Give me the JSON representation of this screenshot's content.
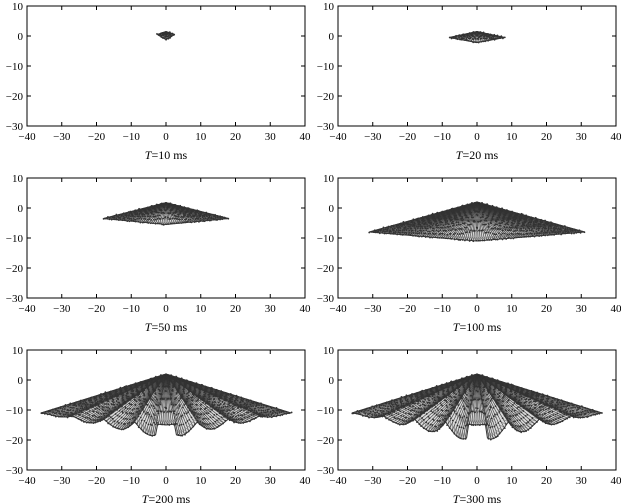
{
  "chart_data": [
    {
      "type": "scatter",
      "caption_var": "T",
      "caption_rest": "=10 ms",
      "xlim": [
        -40,
        40
      ],
      "ylim": [
        -30,
        10
      ],
      "xticks": [
        -40,
        -30,
        -20,
        -10,
        0,
        10,
        20,
        30,
        40
      ],
      "yticks": [
        10,
        0,
        -10,
        -20,
        -30
      ],
      "half_width": 2.5,
      "apex": 1.5,
      "outer_tip": 0.5,
      "dip": -1.0,
      "inner_dip": -1.2,
      "lobes": 2,
      "grid": false,
      "marker": "dot",
      "color": "#333333"
    },
    {
      "type": "scatter",
      "caption_var": "T",
      "caption_rest": "=20 ms",
      "xlim": [
        -40,
        40
      ],
      "ylim": [
        -30,
        10
      ],
      "xticks": [
        -40,
        -30,
        -20,
        -10,
        0,
        10,
        20,
        30,
        40
      ],
      "yticks": [
        10,
        0,
        -10,
        -20,
        -30
      ],
      "half_width": 8,
      "apex": 1.5,
      "outer_tip": -0.5,
      "dip": -1.8,
      "inner_dip": -2.2,
      "lobes": 3,
      "grid": false,
      "marker": "dot",
      "color": "#333333"
    },
    {
      "type": "scatter",
      "caption_var": "T",
      "caption_rest": "=50 ms",
      "xlim": [
        -40,
        40
      ],
      "ylim": [
        -30,
        10
      ],
      "xticks": [
        -40,
        -30,
        -20,
        -10,
        0,
        10,
        20,
        30,
        40
      ],
      "yticks": [
        10,
        0,
        -10,
        -20,
        -30
      ],
      "half_width": 18,
      "apex": 1.8,
      "outer_tip": -3.5,
      "dip": -5.0,
      "inner_dip": -5.5,
      "lobes": 4,
      "grid": false,
      "marker": "dot",
      "color": "#333333"
    },
    {
      "type": "scatter",
      "caption_var": "T",
      "caption_rest": "=100 ms",
      "xlim": [
        -40,
        40
      ],
      "ylim": [
        -30,
        10
      ],
      "xticks": [
        -40,
        -30,
        -20,
        -10,
        0,
        10,
        20,
        30,
        40
      ],
      "yticks": [
        10,
        0,
        -10,
        -20,
        -30
      ],
      "half_width": 31,
      "apex": 2.0,
      "outer_tip": -8.0,
      "dip": -10.5,
      "inner_dip": -11.0,
      "lobes": 4,
      "grid": false,
      "marker": "dot",
      "color": "#333333"
    },
    {
      "type": "scatter",
      "caption_var": "T",
      "caption_rest": "=200 ms",
      "xlim": [
        -40,
        40
      ],
      "ylim": [
        -30,
        10
      ],
      "xticks": [
        -40,
        -30,
        -20,
        -10,
        0,
        10,
        20,
        30,
        40
      ],
      "yticks": [
        10,
        0,
        -10,
        -20,
        -30
      ],
      "half_width": 36,
      "apex": 2.0,
      "outer_tip": -11.0,
      "dip": -18.5,
      "inner_dip": -15.0,
      "lobes": 4,
      "grid": false,
      "marker": "dot",
      "color": "#333333"
    },
    {
      "type": "scatter",
      "caption_var": "T",
      "caption_rest": "=300 ms",
      "xlim": [
        -40,
        40
      ],
      "ylim": [
        -30,
        10
      ],
      "xticks": [
        -40,
        -30,
        -20,
        -10,
        0,
        10,
        20,
        30,
        40
      ],
      "yticks": [
        10,
        0,
        -10,
        -20,
        -30
      ],
      "half_width": 36,
      "apex": 2.0,
      "outer_tip": -11.0,
      "dip": -19.5,
      "inner_dip": -15.0,
      "lobes": 4,
      "grid": false,
      "marker": "dot",
      "color": "#333333"
    }
  ]
}
